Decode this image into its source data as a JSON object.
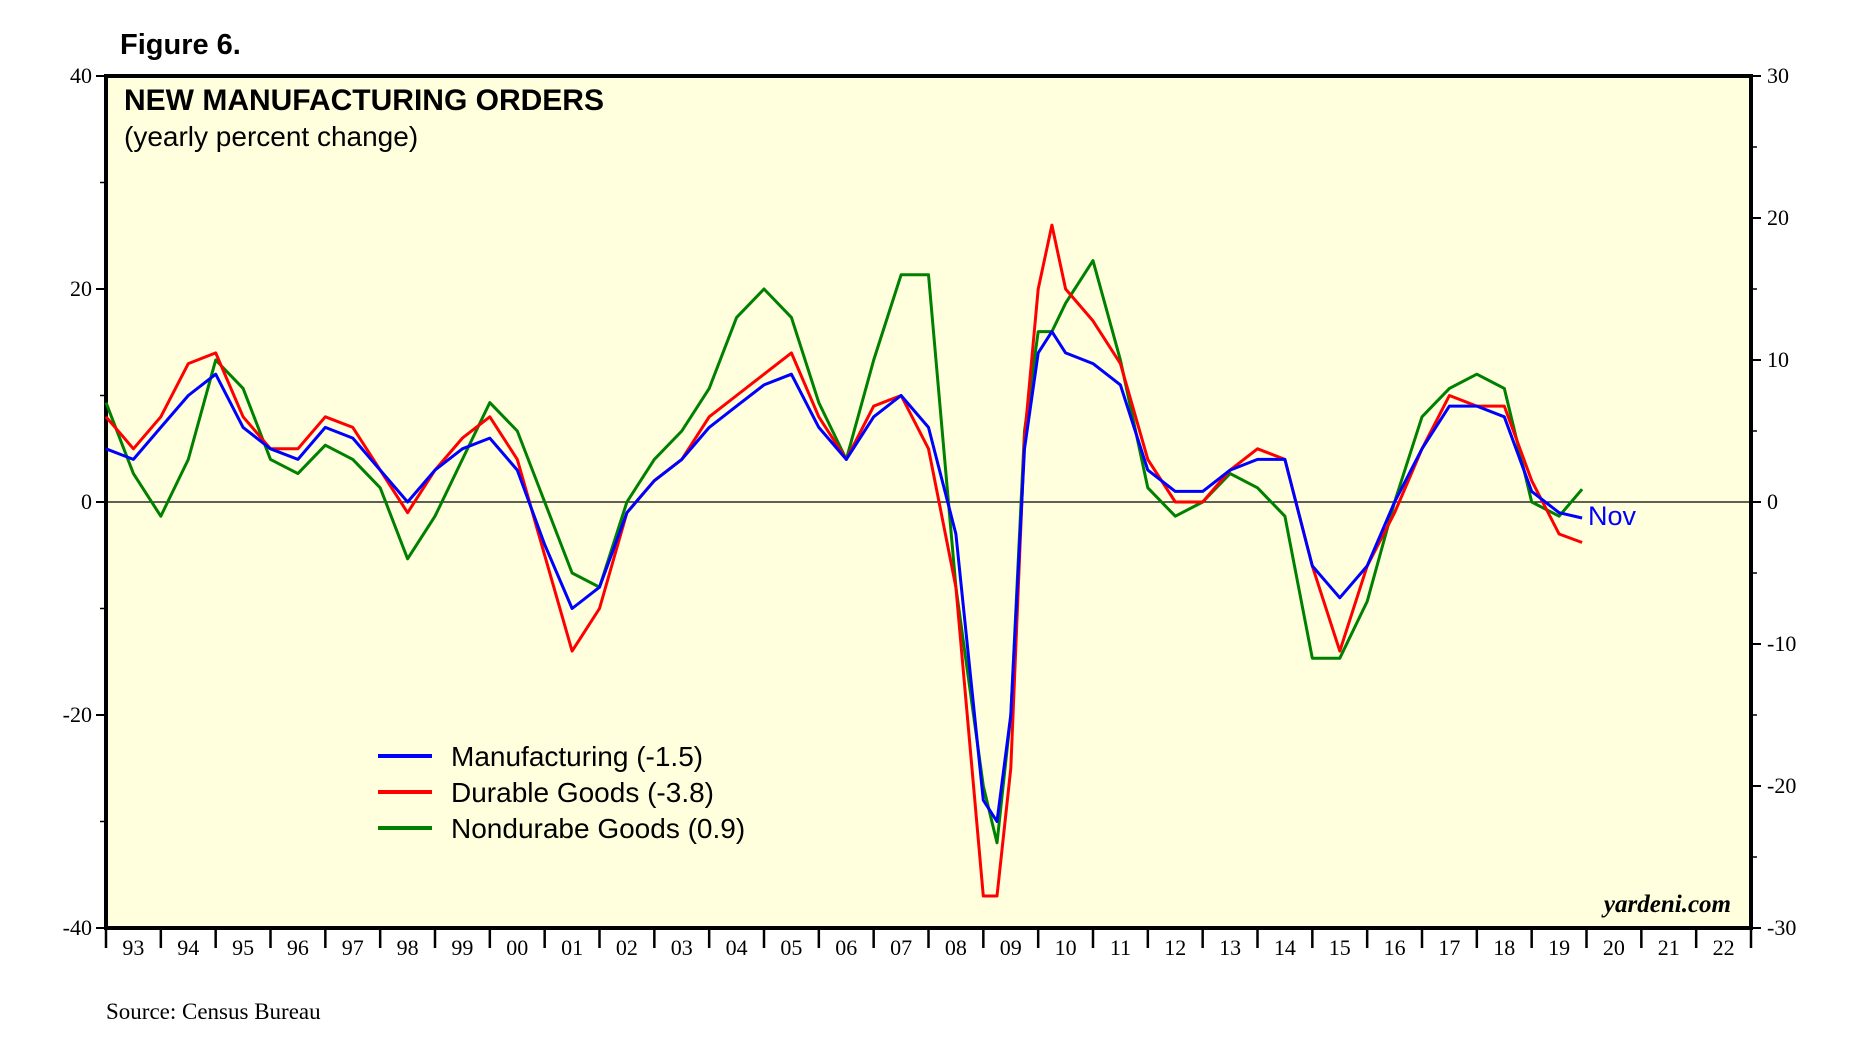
{
  "figure_label": "Figure 6.",
  "source": "Source: Census Bureau",
  "watermark": "yardeni.com",
  "colors": {
    "background": "#FFFFDD",
    "manufacturing": "#0000FF",
    "durable": "#FF0000",
    "nondurable": "#008000"
  },
  "chart_data": {
    "type": "line",
    "title": "NEW MANUFACTURING ORDERS",
    "subtitle": "(yearly percent change)",
    "left_axis": {
      "ylim": [
        -40,
        40
      ],
      "ticks": [
        "40",
        "20",
        "0",
        "-20",
        "-40"
      ]
    },
    "right_axis": {
      "ylim": [
        -30,
        30
      ],
      "ticks": [
        "30",
        "20",
        "10",
        "0",
        "-10",
        "-20",
        "-30"
      ]
    },
    "x_range": [
      1993,
      2023
    ],
    "x_ticks": [
      "93",
      "94",
      "95",
      "96",
      "97",
      "98",
      "99",
      "00",
      "01",
      "02",
      "03",
      "04",
      "05",
      "06",
      "07",
      "08",
      "09",
      "10",
      "11",
      "12",
      "13",
      "14",
      "15",
      "16",
      "17",
      "18",
      "19",
      "20",
      "21",
      "22"
    ],
    "end_annotation": "Nov",
    "series": [
      {
        "name": "Manufacturing",
        "legend_label": "Manufacturing (-1.5)",
        "axis": "left",
        "color": "#0000FF",
        "x": [
          1993.0,
          1993.5,
          1994.0,
          1994.5,
          1995.0,
          1995.5,
          1996.0,
          1996.5,
          1997.0,
          1997.5,
          1998.0,
          1998.5,
          1999.0,
          1999.5,
          2000.0,
          2000.5,
          2001.0,
          2001.5,
          2002.0,
          2002.5,
          2003.0,
          2003.5,
          2004.0,
          2004.5,
          2005.0,
          2005.5,
          2006.0,
          2006.5,
          2007.0,
          2007.5,
          2008.0,
          2008.5,
          2009.0,
          2009.25,
          2009.5,
          2009.75,
          2010.0,
          2010.25,
          2010.5,
          2011.0,
          2011.5,
          2012.0,
          2012.5,
          2013.0,
          2013.5,
          2014.0,
          2014.5,
          2015.0,
          2015.5,
          2016.0,
          2016.5,
          2017.0,
          2017.5,
          2018.0,
          2018.5,
          2019.0,
          2019.5,
          2019.92
        ],
        "values": [
          5,
          4,
          7,
          10,
          12,
          7,
          5,
          4,
          7,
          6,
          3,
          0,
          3,
          5,
          6,
          3,
          -4,
          -10,
          -8,
          -1,
          2,
          4,
          7,
          9,
          11,
          12,
          7,
          4,
          8,
          10,
          7,
          -3,
          -28,
          -30,
          -20,
          5,
          14,
          16,
          14,
          13,
          11,
          3,
          1,
          1,
          3,
          4,
          4,
          -6,
          -9,
          -6,
          0,
          5,
          9,
          9,
          8,
          1,
          -1,
          -1.5
        ]
      },
      {
        "name": "Durable Goods",
        "legend_label": "Durable Goods (-3.8)",
        "axis": "left",
        "color": "#FF0000",
        "x": [
          1993.0,
          1993.5,
          1994.0,
          1994.5,
          1995.0,
          1995.5,
          1996.0,
          1996.5,
          1997.0,
          1997.5,
          1998.0,
          1998.5,
          1999.0,
          1999.5,
          2000.0,
          2000.5,
          2001.0,
          2001.5,
          2002.0,
          2002.5,
          2003.0,
          2003.5,
          2004.0,
          2004.5,
          2005.0,
          2005.5,
          2006.0,
          2006.5,
          2007.0,
          2007.5,
          2008.0,
          2008.5,
          2009.0,
          2009.25,
          2009.5,
          2009.75,
          2010.0,
          2010.25,
          2010.5,
          2011.0,
          2011.5,
          2012.0,
          2012.5,
          2013.0,
          2013.5,
          2014.0,
          2014.5,
          2015.0,
          2015.5,
          2016.0,
          2016.5,
          2017.0,
          2017.5,
          2018.0,
          2018.5,
          2019.0,
          2019.5,
          2019.92
        ],
        "values": [
          8,
          5,
          8,
          13,
          14,
          8,
          5,
          5,
          8,
          7,
          3,
          -1,
          3,
          6,
          8,
          4,
          -5,
          -14,
          -10,
          -1,
          2,
          4,
          8,
          10,
          12,
          14,
          8,
          4,
          9,
          10,
          5,
          -8,
          -37,
          -37,
          -25,
          6,
          20,
          26,
          20,
          17,
          13,
          4,
          0,
          0,
          3,
          5,
          4,
          -6,
          -14,
          -6,
          -1,
          5,
          10,
          9,
          9,
          2,
          -3,
          -3.8
        ]
      },
      {
        "name": "Nondurabe Goods",
        "legend_label": "Nondurabe Goods (0.9)",
        "axis": "right",
        "color": "#008000",
        "x": [
          1993.0,
          1993.5,
          1994.0,
          1994.5,
          1995.0,
          1995.5,
          1996.0,
          1996.5,
          1997.0,
          1997.5,
          1998.0,
          1998.5,
          1999.0,
          1999.5,
          2000.0,
          2000.5,
          2001.0,
          2001.5,
          2002.0,
          2002.5,
          2003.0,
          2003.5,
          2004.0,
          2004.5,
          2005.0,
          2005.5,
          2006.0,
          2006.5,
          2007.0,
          2007.5,
          2008.0,
          2008.5,
          2009.0,
          2009.25,
          2009.5,
          2009.75,
          2010.0,
          2010.25,
          2010.5,
          2011.0,
          2011.5,
          2012.0,
          2012.5,
          2013.0,
          2013.5,
          2014.0,
          2014.5,
          2015.0,
          2015.5,
          2016.0,
          2016.5,
          2017.0,
          2017.5,
          2018.0,
          2018.5,
          2019.0,
          2019.5,
          2019.92
        ],
        "values": [
          7,
          2,
          -1,
          3,
          10,
          8,
          3,
          2,
          4,
          3,
          1,
          -4,
          -1,
          3,
          7,
          5,
          0,
          -5,
          -6,
          0,
          3,
          5,
          8,
          13,
          15,
          13,
          7,
          3,
          10,
          16,
          16,
          -6,
          -20,
          -24,
          -15,
          5,
          12,
          12,
          14,
          17,
          10,
          1,
          -1,
          0,
          2,
          1,
          -1,
          -11,
          -11,
          -7,
          0,
          6,
          8,
          9,
          8,
          0,
          -1,
          0.9
        ]
      }
    ]
  }
}
